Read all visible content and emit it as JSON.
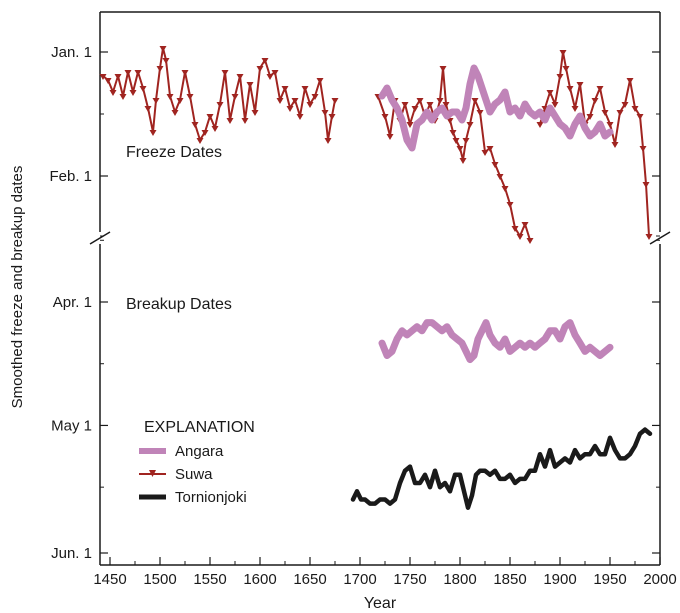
{
  "chart_data": {
    "type": "line",
    "title": "",
    "xlabel": "Year",
    "ylabel": "Smoothed freeze and breakup dates",
    "xlim": [
      1440,
      2000
    ],
    "x_ticks": [
      "1450",
      "1500",
      "1550",
      "1600",
      "1650",
      "1700",
      "1750",
      "1800",
      "1850",
      "1900",
      "1950",
      "2000"
    ],
    "y_tick_labels": [
      "Jan. 1",
      "Feb. 1",
      "Apr. 1",
      "May 1",
      "Jun. 1"
    ],
    "y_axis_break": "between Feb. and Apr.",
    "panel_labels": {
      "freeze": "Freeze Dates",
      "breakup": "Breakup Dates"
    },
    "legend": {
      "title": "EXPLANATION",
      "placement": "lower-left",
      "entries": [
        {
          "name": "Angara",
          "color": "#c084b8"
        },
        {
          "name": "Suwa",
          "color": "#a02420"
        },
        {
          "name": "Tornionjoki",
          "color": "#1a1a1a"
        }
      ]
    },
    "y_units": "days after Jan. 1 (freeze); day of year (breakup)",
    "series": [
      {
        "name": "Suwa",
        "panel": "freeze",
        "color": "#a02420",
        "segments": [
          {
            "x": [
              1443,
              1448,
              1453,
              1458,
              1463,
              1468,
              1473,
              1478,
              1483,
              1488,
              1493,
              1496,
              1500,
              1503,
              1506,
              1510,
              1515,
              1520,
              1525,
              1530,
              1535,
              1540,
              1545,
              1550,
              1555,
              1560,
              1565,
              1570,
              1575,
              1580,
              1585,
              1590,
              1595,
              1600,
              1605,
              1610,
              1615,
              1620,
              1625,
              1630,
              1635,
              1640,
              1645,
              1650,
              1655,
              1660,
              1665,
              1668,
              1672,
              1675
            ],
            "y": [
              6,
              7,
              10,
              6,
              11,
              5,
              10,
              5,
              9,
              14,
              20,
              12,
              4,
              -1,
              2,
              11,
              15,
              12,
              5,
              11,
              18,
              22,
              20,
              16,
              19,
              13,
              5,
              17,
              11,
              6,
              17,
              8,
              15,
              4,
              2,
              6,
              5,
              12,
              9,
              14,
              12,
              16,
              9,
              13,
              11,
              7,
              15,
              22,
              16,
              12
            ]
          },
          {
            "x": [
              1718,
              1725,
              1730,
              1735,
              1740,
              1745,
              1750,
              1755,
              1760,
              1765,
              1770,
              1775,
              1780,
              1783,
              1786,
              1790,
              1793,
              1796,
              1800,
              1803,
              1806,
              1810,
              1815,
              1820,
              1825,
              1830,
              1835,
              1840,
              1845,
              1850,
              1855,
              1860,
              1865,
              1870
            ],
            "y": [
              11,
              16,
              21,
              12,
              17,
              13,
              18,
              14,
              12,
              16,
              13,
              17,
              12,
              4,
              13,
              17,
              20,
              22,
              24,
              27,
              22,
              18,
              12,
              15,
              25,
              24,
              28,
              31,
              34,
              38,
              44,
              46,
              43,
              47
            ]
          },
          {
            "x": [
              1880,
              1885,
              1890,
              1895,
              1900,
              1903,
              1906,
              1910,
              1915,
              1920,
              1925,
              1930,
              1935,
              1940,
              1945,
              1950,
              1955,
              1960,
              1965,
              1970,
              1975,
              1980,
              1983,
              1986,
              1989
            ],
            "y": [
              18,
              14,
              10,
              13,
              6,
              0,
              4,
              9,
              14,
              8,
              18,
              16,
              12,
              9,
              15,
              18,
              23,
              15,
              13,
              7,
              14,
              16,
              24,
              33,
              46
            ]
          }
        ]
      },
      {
        "name": "Angara",
        "panel": "freeze",
        "color": "#c084b8",
        "segments": [
          {
            "x": [
              1722,
              1727,
              1732,
              1737,
              1742,
              1747,
              1752,
              1757,
              1762,
              1767,
              1772,
              1777,
              1782,
              1787,
              1792,
              1797,
              1802,
              1806,
              1810,
              1814,
              1818,
              1822,
              1826,
              1830,
              1835,
              1840,
              1845,
              1850,
              1855,
              1860,
              1865,
              1870,
              1875,
              1880,
              1885,
              1890,
              1895,
              1900,
              1905,
              1910,
              1915,
              1920,
              1925,
              1930,
              1935,
              1940,
              1945,
              1950
            ],
            "y": [
              11,
              9,
              12,
              14,
              17,
              22,
              24,
              18,
              17,
              15,
              17,
              15,
              14,
              16,
              15,
              15,
              17,
              14,
              8,
              4,
              6,
              9,
              12,
              15,
              13,
              12,
              10,
              15,
              14,
              16,
              13,
              15,
              16,
              15,
              17,
              14,
              16,
              18,
              19,
              21,
              18,
              16,
              19,
              21,
              20,
              18,
              21,
              20
            ]
          }
        ]
      },
      {
        "name": "Angara",
        "panel": "breakup",
        "color": "#c084b8",
        "segments": [
          {
            "x": [
              1722,
              1727,
              1732,
              1737,
              1742,
              1747,
              1752,
              1757,
              1762,
              1767,
              1772,
              1777,
              1782,
              1787,
              1792,
              1797,
              1802,
              1806,
              1810,
              1814,
              1818,
              1822,
              1826,
              1830,
              1835,
              1840,
              1845,
              1850,
              1855,
              1860,
              1865,
              1870,
              1875,
              1880,
              1885,
              1890,
              1895,
              1900,
              1905,
              1910,
              1915,
              1920,
              1925,
              1930,
              1935,
              1940,
              1945,
              1950
            ],
            "y": [
              101,
              104,
              103,
              100,
              98,
              99,
              98,
              97,
              98,
              96,
              96,
              97,
              98,
              97,
              99,
              100,
              101,
              103,
              105,
              104,
              100,
              98,
              96,
              99,
              101,
              102,
              100,
              103,
              102,
              101,
              102,
              101,
              102,
              101,
              100,
              98,
              98,
              100,
              97,
              96,
              99,
              101,
              103,
              102,
              103,
              104,
              103,
              102
            ]
          }
        ]
      },
      {
        "name": "Tornionjoki",
        "panel": "breakup",
        "color": "#1a1a1a",
        "segments": [
          {
            "x": [
              1693,
              1697,
              1701,
              1705,
              1710,
              1715,
              1720,
              1725,
              1730,
              1735,
              1740,
              1745,
              1750,
              1755,
              1760,
              1765,
              1770,
              1775,
              1780,
              1785,
              1790,
              1795,
              1800,
              1805,
              1808,
              1812,
              1816,
              1820,
              1825,
              1830,
              1835,
              1840,
              1845,
              1850,
              1855,
              1860,
              1865,
              1870,
              1875,
              1880,
              1885,
              1890,
              1895,
              1900,
              1905,
              1910,
              1915,
              1920,
              1925,
              1930,
              1935,
              1940,
              1945,
              1950,
              1955,
              1960,
              1965,
              1970,
              1975,
              1980,
              1985,
              1990
            ],
            "y": [
              139,
              137,
              139,
              139,
              140,
              140,
              139,
              139,
              140,
              139,
              135,
              132,
              131,
              135,
              135,
              133,
              136,
              132,
              136,
              135,
              137,
              133,
              133,
              138,
              141,
              138,
              133,
              132,
              132,
              133,
              132,
              134,
              134,
              133,
              135,
              134,
              134,
              132,
              132,
              128,
              131,
              127,
              131,
              130,
              129,
              130,
              127,
              129,
              128,
              128,
              126,
              128,
              128,
              124,
              127,
              129,
              129,
              128,
              126,
              123,
              122,
              123
            ]
          }
        ]
      }
    ]
  }
}
